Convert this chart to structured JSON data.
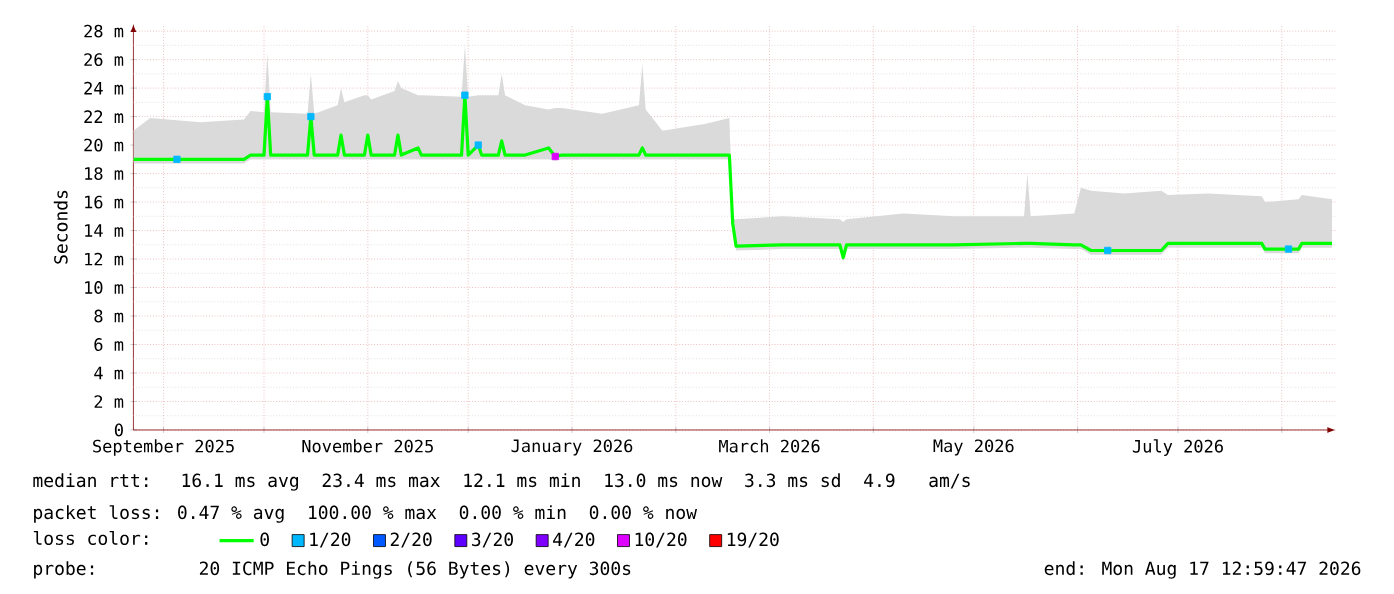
{
  "chart_data": {
    "type": "line",
    "ylabel": "Seconds",
    "legend_title": "loss color:",
    "annotations": [
      "median rtt:  16.1 ms avg  23.4 ms max  12.1 ms min  13.0 ms now  3.3 ms sd  4.9   am/s",
      "packet loss: 0.47 % avg  100.00 % max  0.00 % min  0.00 % now",
      "probe:       20 ICMP Echo Pings (56 Bytes) every 300s",
      "end: Mon Aug 17 12:59:47 2026"
    ],
    "xlim": [
      "2025-08-23",
      "2026-08-17"
    ],
    "xticks": [
      {
        "value": "2025-09-01",
        "label": "September 2025"
      },
      {
        "value": "2025-10-01",
        "label": null
      },
      {
        "value": "2025-11-01",
        "label": "November 2025"
      },
      {
        "value": "2025-12-01",
        "label": null
      },
      {
        "value": "2026-01-01",
        "label": "January 2026"
      },
      {
        "value": "2026-02-01",
        "label": null
      },
      {
        "value": "2026-03-01",
        "label": "March 2026"
      },
      {
        "value": "2026-04-01",
        "label": null
      },
      {
        "value": "2026-05-01",
        "label": "May 2026"
      },
      {
        "value": "2026-06-01",
        "label": null
      },
      {
        "value": "2026-07-01",
        "label": "July 2026"
      },
      {
        "value": "2026-08-01",
        "label": null
      }
    ],
    "ylim": [
      0,
      28.5
    ],
    "yticks": [
      0,
      {
        "value": 2,
        "label": "2 m"
      },
      {
        "value": 4,
        "label": "4 m"
      },
      {
        "value": 6,
        "label": "6 m"
      },
      {
        "value": 8,
        "label": "8 m"
      },
      {
        "value": 10,
        "label": "10 m"
      },
      {
        "value": 12,
        "label": "12 m"
      },
      {
        "value": 14,
        "label": "14 m"
      },
      {
        "value": 16,
        "label": "16 m"
      },
      {
        "value": 18,
        "label": "18 m"
      },
      {
        "value": 20,
        "label": "20 m"
      },
      {
        "value": 22,
        "label": "22 m"
      },
      {
        "value": 24,
        "label": "24 m"
      },
      {
        "value": 26,
        "label": "26 m"
      },
      {
        "value": 28,
        "label": "28 m"
      },
      {
        "value": 1,
        "label": null
      },
      {
        "value": 3,
        "label": null
      },
      {
        "value": 5,
        "label": null
      },
      {
        "value": 7,
        "label": null
      },
      {
        "value": 9,
        "label": null
      },
      {
        "value": 11,
        "label": null
      },
      {
        "value": 13,
        "label": null
      },
      {
        "value": 15,
        "label": null
      },
      {
        "value": 17,
        "label": null
      },
      {
        "value": 19,
        "label": null
      },
      {
        "value": 21,
        "label": null
      },
      {
        "value": 23,
        "label": null
      },
      {
        "value": 25,
        "label": null
      },
      {
        "value": 27,
        "label": null
      }
    ],
    "grid": true,
    "legend": "bottom",
    "series": [
      {
        "name": "0",
        "color": "#00ff00",
        "x": [
          "2025-08-23",
          "2025-08-28",
          "2025-09-12",
          "2025-09-25",
          "2025-09-27",
          "2025-10-01",
          "2025-10-02",
          "2025-10-03",
          "2025-10-14",
          "2025-10-15",
          "2025-10-16",
          "2025-10-23",
          "2025-10-24",
          "2025-10-25",
          "2025-10-31",
          "2025-11-01",
          "2025-11-02",
          "2025-11-09",
          "2025-11-10",
          "2025-11-11",
          "2025-11-16",
          "2025-11-17",
          "2025-11-29",
          "2025-11-30",
          "2025-12-01",
          "2025-12-04",
          "2025-12-05",
          "2025-12-10",
          "2025-12-11",
          "2025-12-12",
          "2025-12-18",
          "2025-12-25",
          "2025-12-27",
          "2025-12-29",
          "2026-01-10",
          "2026-01-21",
          "2026-01-22",
          "2026-01-23",
          "2026-01-28",
          "2026-02-10",
          "2026-02-17",
          "2026-02-18",
          "2026-02-19",
          "2026-03-05",
          "2026-03-22",
          "2026-03-23",
          "2026-03-24",
          "2026-04-10",
          "2026-04-25",
          "2026-05-16",
          "2026-05-17",
          "2026-05-18",
          "2026-05-31",
          "2026-06-02",
          "2026-06-05",
          "2026-06-15",
          "2026-06-26",
          "2026-06-28",
          "2026-07-10",
          "2026-07-26",
          "2026-07-27",
          "2026-08-06",
          "2026-08-07",
          "2026-08-16"
        ],
        "values": [
          19.0,
          19.0,
          19.0,
          19.0,
          19.3,
          19.3,
          23.4,
          19.3,
          19.3,
          22.0,
          19.3,
          19.3,
          20.7,
          19.3,
          19.3,
          20.7,
          19.3,
          19.3,
          20.7,
          19.3,
          19.8,
          19.3,
          19.3,
          23.5,
          19.3,
          20.0,
          19.3,
          19.3,
          20.3,
          19.3,
          19.3,
          19.8,
          19.2,
          19.3,
          19.3,
          19.3,
          19.8,
          19.3,
          19.3,
          19.3,
          19.3,
          14.5,
          12.9,
          13.0,
          13.0,
          12.1,
          13.0,
          13.0,
          13.0,
          13.1,
          13.1,
          13.1,
          13.0,
          13.0,
          12.6,
          12.6,
          12.6,
          13.1,
          13.1,
          13.1,
          12.7,
          12.7,
          13.1,
          13.1
        ],
        "lower": [
          18.7,
          18.7,
          18.7,
          18.7,
          19.0,
          19.0,
          19.0,
          19.0,
          19.0,
          19.0,
          19.0,
          19.0,
          19.0,
          19.0,
          19.0,
          19.0,
          19.0,
          19.0,
          19.0,
          19.0,
          19.0,
          19.0,
          19.0,
          19.0,
          19.0,
          19.0,
          19.0,
          19.0,
          19.0,
          19.0,
          19.0,
          19.0,
          18.9,
          19.0,
          19.0,
          19.0,
          19.0,
          19.0,
          19.0,
          19.0,
          19.0,
          14.2,
          12.6,
          12.7,
          12.7,
          11.8,
          12.7,
          12.7,
          12.7,
          12.8,
          12.8,
          12.8,
          12.7,
          12.7,
          12.3,
          12.3,
          12.3,
          12.8,
          12.8,
          12.8,
          12.4,
          12.4,
          12.8,
          12.8
        ],
        "upper": [
          21.0,
          21.9,
          21.6,
          21.8,
          22.4,
          22.3,
          26.5,
          22.3,
          22.2,
          25.0,
          22.2,
          22.8,
          24.0,
          23.0,
          23.5,
          23.5,
          23.2,
          23.8,
          24.5,
          24.0,
          23.5,
          23.5,
          23.4,
          27.0,
          23.4,
          23.5,
          23.5,
          23.5,
          25.0,
          23.5,
          22.8,
          22.5,
          22.6,
          22.6,
          22.2,
          22.8,
          25.7,
          22.5,
          21.0,
          21.5,
          21.9,
          14.8,
          14.8,
          15.0,
          14.8,
          14.6,
          14.8,
          15.2,
          15.0,
          15.0,
          18.0,
          15.0,
          15.2,
          17.0,
          16.8,
          16.6,
          16.8,
          16.5,
          16.6,
          16.4,
          16.0,
          16.2,
          16.5,
          16.2
        ]
      },
      {
        "name": "1/20",
        "color": "#00b8ff",
        "type": "scatter",
        "marker": "square",
        "x": [
          "2025-09-05",
          "2025-10-02",
          "2025-10-15",
          "2025-11-30",
          "2025-12-04",
          "2026-06-10",
          "2026-08-03"
        ],
        "values": [
          19.0,
          23.4,
          22.0,
          23.5,
          20.0,
          12.6,
          12.7
        ]
      },
      {
        "name": "2/20",
        "color": "#0059ff",
        "type": "scatter",
        "marker": "square"
      },
      {
        "name": "3/20",
        "color": "#5e00ff",
        "type": "scatter",
        "marker": "square"
      },
      {
        "name": "4/20",
        "color": "#7e00ff",
        "type": "scatter",
        "marker": "square"
      },
      {
        "name": "10/20",
        "color": "#dd00ff",
        "type": "scatter",
        "marker": "square",
        "x": [
          "2025-12-27"
        ],
        "values": [
          19.2
        ]
      },
      {
        "name": "19/20",
        "color": "#ff0000",
        "type": "scatter",
        "marker": "square"
      }
    ],
    "line_style": "solid"
  }
}
